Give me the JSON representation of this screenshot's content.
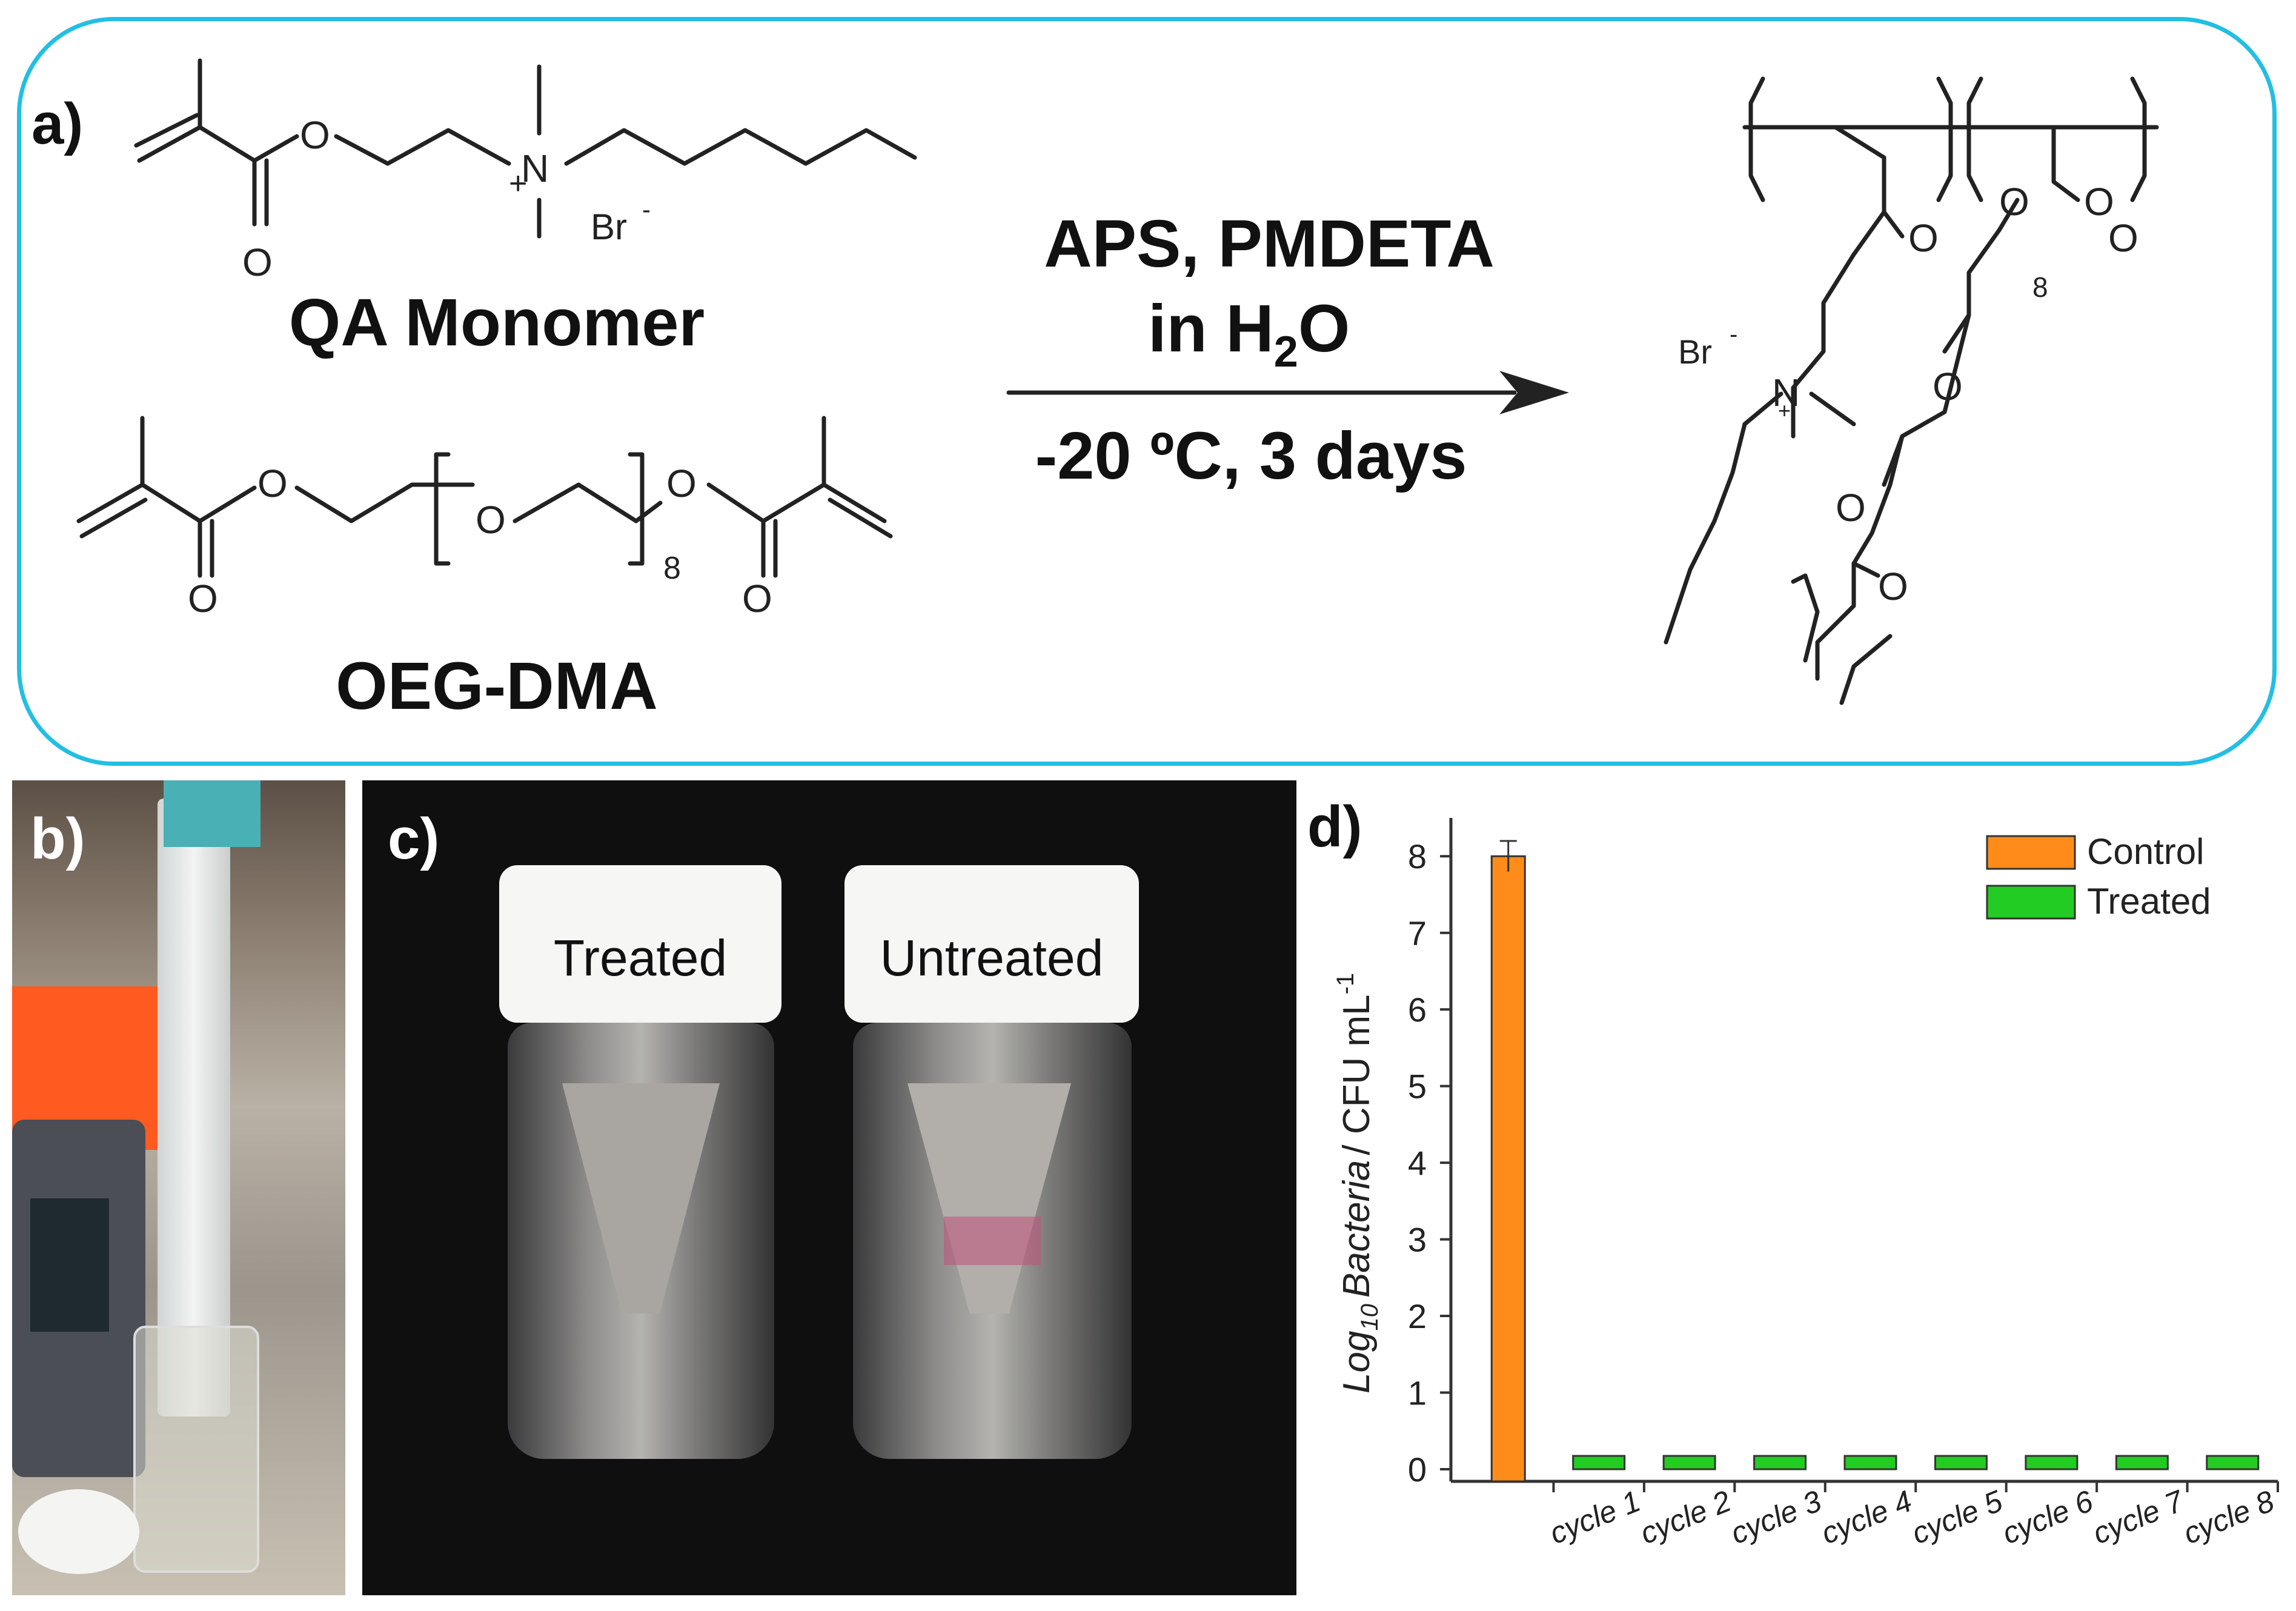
{
  "panel_a": {
    "label": "a)",
    "monomer_1": {
      "name": "QA Monomer",
      "counter_ion": "Br",
      "ion_charge": "-",
      "plus": "+"
    },
    "monomer_2": {
      "name": "OEG-DMA",
      "repeat": "8"
    },
    "reaction": {
      "line1": "APS, PMDETA",
      "line2_prefix": "in H",
      "line2_sub": "2",
      "line2_suffix": "O",
      "conditions": "-20 ºC, 3 days"
    },
    "product": {
      "counter_ion": "Br",
      "ion_charge": "-",
      "repeat": "8"
    },
    "atoms": {
      "O": "O",
      "N": "N"
    }
  },
  "panel_b": {
    "label": "b)"
  },
  "panel_c": {
    "label": "c)",
    "vial_left": "Treated",
    "vial_right": "Untreated"
  },
  "panel_d": {
    "label": "d)"
  },
  "chart_data": {
    "type": "bar",
    "categories": [
      "",
      "cycle 1",
      "cycle 2",
      "cycle 3",
      "cycle 4",
      "cycle 5",
      "cycle 6",
      "cycle 7",
      "cycle 8"
    ],
    "series": [
      {
        "name": "Control",
        "color": "#ff8c1a",
        "values": [
          8.0,
          null,
          null,
          null,
          null,
          null,
          null,
          null,
          null
        ],
        "error": [
          0.2,
          null,
          null,
          null,
          null,
          null,
          null,
          null,
          null
        ]
      },
      {
        "name": "Treated",
        "color": "#22cc22",
        "values": [
          null,
          0,
          0,
          0,
          0,
          0,
          0,
          0,
          0
        ]
      }
    ],
    "ylabel_log": "Log",
    "ylabel_sub": "10",
    "ylabel_bacteria": "Bacteria",
    "ylabel_unit": "/ CFU mL",
    "ylabel_sup": "-1",
    "yticks": [
      "0",
      "1",
      "2",
      "3",
      "4",
      "5",
      "6",
      "7",
      "8"
    ],
    "ylim": [
      0,
      8.5
    ],
    "legend_position": "top-right",
    "grid": false
  }
}
